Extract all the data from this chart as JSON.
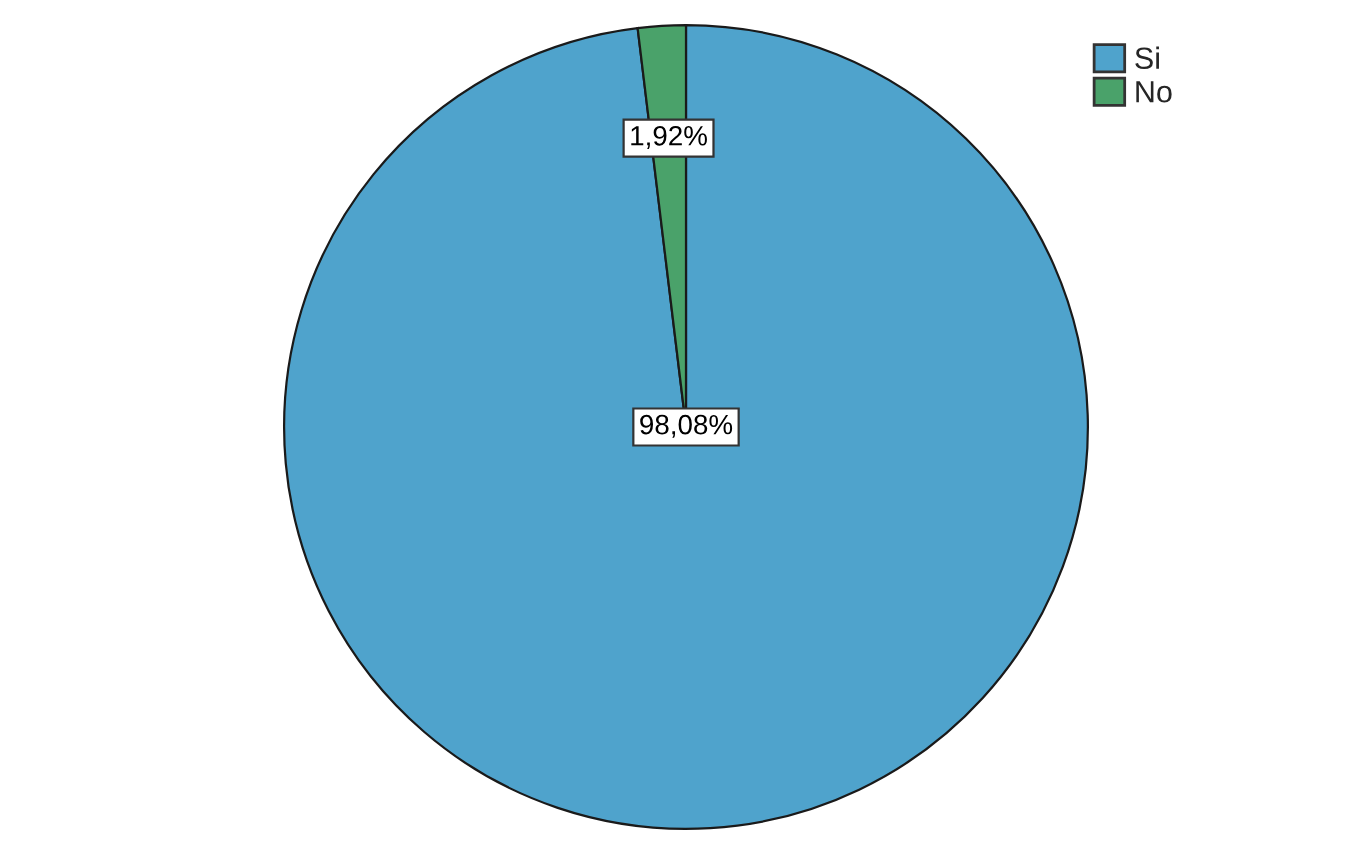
{
  "chart_data": {
    "type": "pie",
    "categories": [
      "Si",
      "No"
    ],
    "values": [
      98.08,
      1.92
    ],
    "colors": [
      "#4fa3cc",
      "#4aa26a"
    ],
    "value_labels": [
      "98,08%",
      "1,92%"
    ],
    "legend": "top right"
  }
}
